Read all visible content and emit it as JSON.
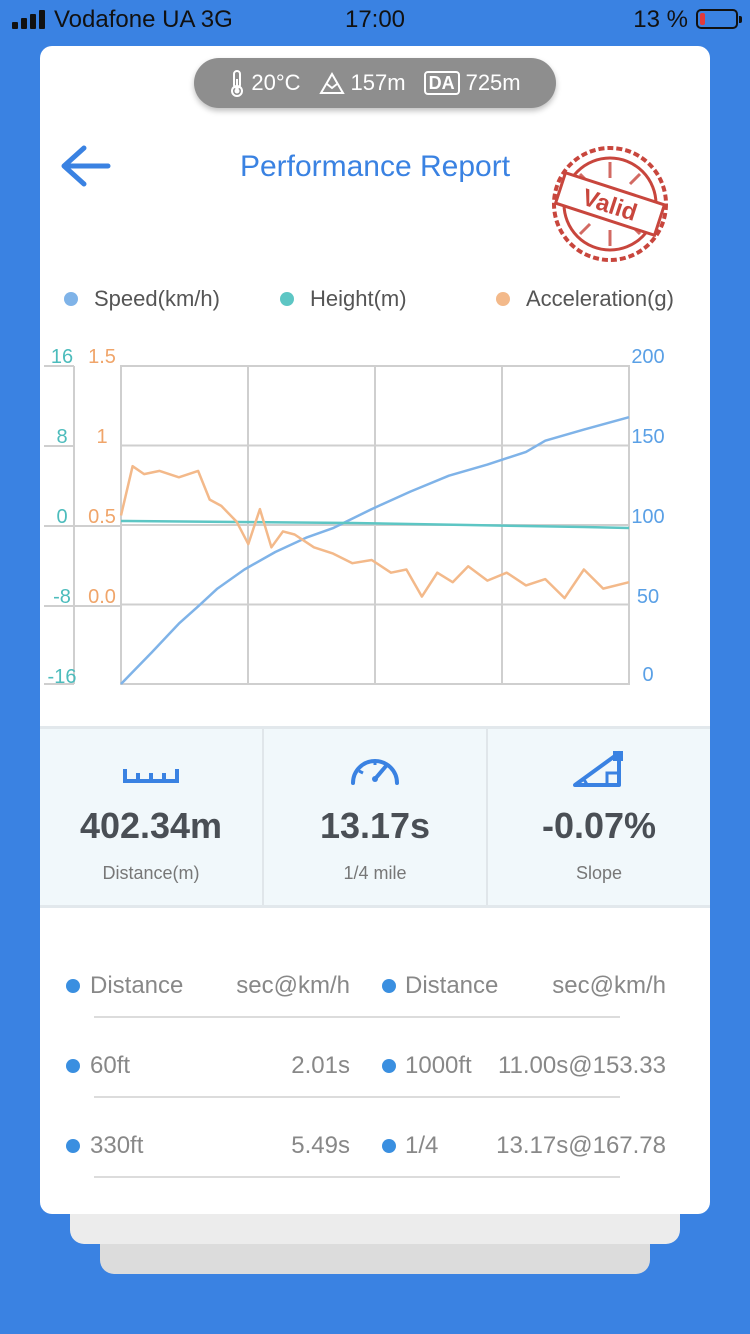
{
  "status_bar": {
    "carrier": "Vodafone UA  3G",
    "time": "17:00",
    "battery": "13 %",
    "battery_level": 0.13
  },
  "env": {
    "temperature": "20°C",
    "altitude": "157m",
    "da_label": "DA",
    "density_altitude": "725m"
  },
  "header": {
    "title": "Performance Report",
    "stamp_text": "Valid"
  },
  "legend": [
    {
      "label": "Speed(km/h)",
      "color": "#7fb3e8"
    },
    {
      "label": "Height(m)",
      "color": "#5dc6c4"
    },
    {
      "label": "Acceleration(g)",
      "color": "#f3b98a"
    }
  ],
  "chart_data": {
    "type": "line",
    "x_range": [
      0,
      13.17
    ],
    "grid": true,
    "axes": {
      "height": {
        "ticks": [
          "16",
          "8",
          "0",
          "-8",
          "-16"
        ],
        "range": [
          -16,
          16
        ],
        "color": "#4cbcbc"
      },
      "acceleration": {
        "ticks": [
          "1.5",
          "1",
          "0.5",
          "0.0"
        ],
        "range": [
          -0.5,
          1.5
        ],
        "color": "#f0a56a"
      },
      "speed": {
        "ticks": [
          "200",
          "150",
          "100",
          "50",
          "0"
        ],
        "range": [
          0,
          200
        ],
        "color": "#5aa0e6"
      }
    },
    "series": [
      {
        "name": "Speed(km/h)",
        "axis": "speed",
        "color": "#7fb3e8",
        "x": [
          0,
          0.8,
          1.5,
          2.01,
          2.5,
          3.2,
          4.0,
          4.8,
          5.49,
          6.5,
          7.5,
          8.5,
          9.5,
          10.5,
          11.0,
          12.0,
          13.17
        ],
        "values": [
          0,
          20,
          38,
          49,
          60,
          72,
          83,
          92,
          98,
          110,
          121,
          131,
          138,
          146,
          153,
          160,
          167.78
        ]
      },
      {
        "name": "Height(m)",
        "axis": "height",
        "color": "#5dc6c4",
        "x": [
          0,
          3.0,
          6.0,
          9.0,
          12.0,
          13.17
        ],
        "values": [
          0.4,
          0.3,
          0.2,
          0.0,
          -0.2,
          -0.3
        ]
      },
      {
        "name": "Acceleration(g)",
        "axis": "acceleration",
        "color": "#f3b98a",
        "x": [
          0,
          0.3,
          0.6,
          1.0,
          1.5,
          2.0,
          2.3,
          2.6,
          3.0,
          3.3,
          3.6,
          3.9,
          4.2,
          4.5,
          5.0,
          5.5,
          6.0,
          6.5,
          7.0,
          7.4,
          7.8,
          8.2,
          8.6,
          9.0,
          9.5,
          10.0,
          10.5,
          11.0,
          11.5,
          12.0,
          12.5,
          13.17
        ],
        "values": [
          0.56,
          0.87,
          0.82,
          0.84,
          0.8,
          0.84,
          0.66,
          0.62,
          0.52,
          0.38,
          0.6,
          0.36,
          0.46,
          0.44,
          0.36,
          0.32,
          0.26,
          0.28,
          0.2,
          0.22,
          0.05,
          0.2,
          0.14,
          0.24,
          0.15,
          0.2,
          0.12,
          0.16,
          0.04,
          0.22,
          0.1,
          0.14
        ]
      }
    ]
  },
  "stats": [
    {
      "value": "402.34m",
      "label": "Distance(m)",
      "icon": "ruler-icon"
    },
    {
      "value": "13.17s",
      "label": "1/4 mile",
      "icon": "speedometer-icon"
    },
    {
      "value": "-0.07%",
      "label": "Slope",
      "icon": "slope-icon"
    }
  ],
  "splits": {
    "headers": {
      "left_name": "Distance",
      "left_value": "sec@km/h",
      "right_name": "Distance",
      "right_value": "sec@km/h"
    },
    "rows": [
      {
        "left_name": "60ft",
        "left_value": "2.01s",
        "right_name": "1000ft",
        "right_value": "11.00s@153.33"
      },
      {
        "left_name": "330ft",
        "left_value": "5.49s",
        "right_name": "1/4",
        "right_value": "13.17s@167.78"
      }
    ]
  },
  "colors": {
    "accent": "#3a82e2",
    "background": "#3a82e2"
  }
}
